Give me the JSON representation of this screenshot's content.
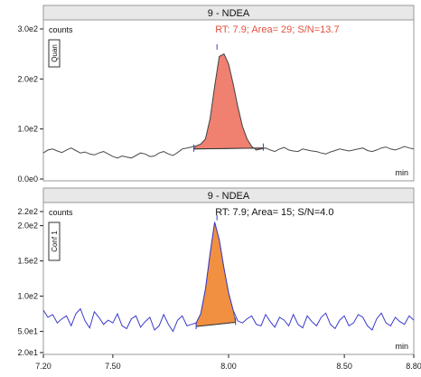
{
  "chart_data": [
    {
      "type": "line",
      "panel_title": "9 - NDEA",
      "side_label": "Quan",
      "y_unit_label": "counts",
      "x_unit_label": "min",
      "annotation": "RT: 7.9; Area= 29; S/N=13.7",
      "ylim": [
        0,
        300
      ],
      "yticks": [
        {
          "value": 0,
          "label": "0.0e0"
        },
        {
          "value": 100,
          "label": "1.0e2"
        },
        {
          "value": 200,
          "label": "2.0e2"
        },
        {
          "value": 300,
          "label": "3.0e2"
        }
      ],
      "trace": {
        "color": "#4a4a4a",
        "x": [
          7.2,
          7.22,
          7.24,
          7.26,
          7.28,
          7.3,
          7.32,
          7.34,
          7.36,
          7.38,
          7.4,
          7.42,
          7.44,
          7.46,
          7.48,
          7.5,
          7.52,
          7.54,
          7.56,
          7.58,
          7.6,
          7.62,
          7.64,
          7.66,
          7.68,
          7.7,
          7.72,
          7.74,
          7.76,
          7.78,
          7.8,
          7.82,
          7.84,
          7.86,
          7.88,
          7.9,
          7.92,
          7.94,
          7.96,
          7.98,
          8.0,
          8.02,
          8.04,
          8.06,
          8.08,
          8.1,
          8.12,
          8.14,
          8.16,
          8.18,
          8.2,
          8.22,
          8.24,
          8.26,
          8.28,
          8.3,
          8.32,
          8.34,
          8.36,
          8.38,
          8.4,
          8.42,
          8.44,
          8.46,
          8.48,
          8.5,
          8.52,
          8.54,
          8.56,
          8.58,
          8.6,
          8.62,
          8.64,
          8.66,
          8.68,
          8.7,
          8.72,
          8.74,
          8.76,
          8.78,
          8.8
        ],
        "y": [
          52,
          58,
          60,
          56,
          53,
          58,
          62,
          57,
          52,
          54,
          50,
          48,
          52,
          55,
          50,
          45,
          42,
          46,
          44,
          42,
          47,
          52,
          50,
          45,
          46,
          52,
          55,
          50,
          47,
          53,
          60,
          62,
          64,
          66,
          70,
          80,
          120,
          185,
          245,
          250,
          230,
          190,
          145,
          105,
          80,
          65,
          58,
          60,
          62,
          58,
          55,
          60,
          63,
          58,
          56,
          55,
          60,
          58,
          56,
          55,
          52,
          50,
          54,
          57,
          60,
          58,
          56,
          58,
          60,
          62,
          57,
          55,
          58,
          62,
          64,
          60,
          58,
          61,
          65,
          62,
          60
        ]
      },
      "peak": {
        "fill": "#f08070",
        "label_color": "#e05040",
        "start": 7.85,
        "end": 8.15,
        "baseline_start": 60,
        "baseline_end": 62,
        "apex_x": 7.95,
        "apex_y": 255
      },
      "style": {
        "border": "#999999",
        "title_bg": "#e8e8e8",
        "tick_color": "#222222"
      }
    },
    {
      "type": "line",
      "panel_title": "9 - NDEA",
      "side_label": "Conf 1",
      "y_unit_label": "counts",
      "x_unit_label": "min",
      "annotation": "RT: 7.9; Area= 15; S/N=4.0",
      "ylim": [
        20,
        220
      ],
      "yticks": [
        {
          "value": 20,
          "label": "2.0e1"
        },
        {
          "value": 50,
          "label": "5.0e1"
        },
        {
          "value": 100,
          "label": "1.0e2"
        },
        {
          "value": 150,
          "label": "1.5e2"
        },
        {
          "value": 200,
          "label": "2.0e2"
        },
        {
          "value": 220,
          "label": "2.2e2"
        }
      ],
      "trace": {
        "color": "#3a3acd",
        "x": [
          7.2,
          7.22,
          7.24,
          7.26,
          7.28,
          7.3,
          7.32,
          7.34,
          7.36,
          7.38,
          7.4,
          7.42,
          7.44,
          7.46,
          7.48,
          7.5,
          7.52,
          7.54,
          7.56,
          7.58,
          7.6,
          7.62,
          7.64,
          7.66,
          7.68,
          7.7,
          7.72,
          7.74,
          7.76,
          7.78,
          7.8,
          7.82,
          7.84,
          7.86,
          7.88,
          7.9,
          7.92,
          7.94,
          7.96,
          7.98,
          8.0,
          8.02,
          8.04,
          8.06,
          8.08,
          8.1,
          8.12,
          8.14,
          8.16,
          8.18,
          8.2,
          8.22,
          8.24,
          8.26,
          8.28,
          8.3,
          8.32,
          8.34,
          8.36,
          8.38,
          8.4,
          8.42,
          8.44,
          8.46,
          8.48,
          8.5,
          8.52,
          8.54,
          8.56,
          8.58,
          8.6,
          8.62,
          8.64,
          8.66,
          8.68,
          8.7,
          8.72,
          8.74,
          8.76,
          8.78,
          8.8
        ],
        "y": [
          80,
          70,
          74,
          62,
          68,
          72,
          58,
          75,
          82,
          65,
          55,
          78,
          70,
          60,
          66,
          62,
          75,
          58,
          54,
          68,
          72,
          56,
          64,
          70,
          52,
          58,
          74,
          60,
          50,
          66,
          72,
          58,
          60,
          62,
          75,
          110,
          160,
          205,
          180,
          140,
          105,
          80,
          65,
          62,
          68,
          72,
          60,
          58,
          74,
          64,
          56,
          70,
          66,
          58,
          74,
          60,
          55,
          72,
          64,
          58,
          70,
          76,
          60,
          54,
          66,
          72,
          58,
          62,
          74,
          70,
          58,
          52,
          68,
          76,
          62,
          58,
          70,
          64,
          60,
          72,
          66
        ]
      },
      "peak": {
        "fill": "#f09040",
        "label_color": "#111111",
        "start": 7.86,
        "end": 8.03,
        "baseline_start": 57,
        "baseline_end": 63,
        "apex_x": 7.95,
        "apex_y": 205
      },
      "style": {
        "border": "#999999",
        "title_bg": "#e8e8e8",
        "tick_color": "#222222"
      }
    }
  ],
  "x_axis": {
    "xlim": [
      7.2,
      8.8
    ],
    "ticks": [
      {
        "value": 7.2,
        "label": "7.20"
      },
      {
        "value": 7.5,
        "label": "7.50"
      },
      {
        "value": 8.0,
        "label": "8.00"
      },
      {
        "value": 8.5,
        "label": "8.50"
      },
      {
        "value": 8.8,
        "label": "8.80"
      }
    ]
  }
}
